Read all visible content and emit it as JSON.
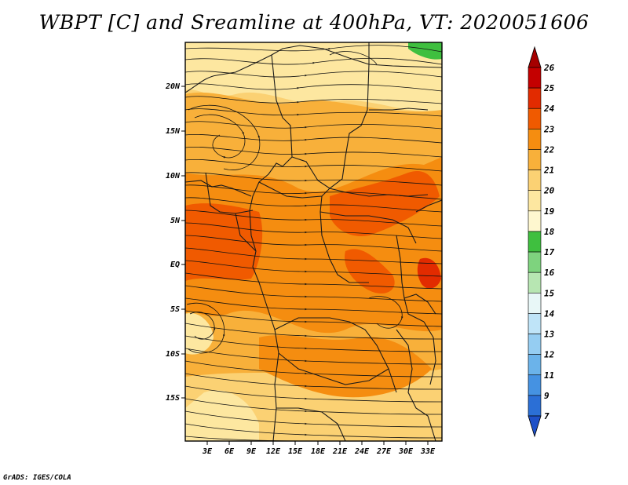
{
  "title": "WBPT [C] and Sreamline at 400hPa, VT: 2020051606",
  "credit": "GrADS: IGES/COLA",
  "map": {
    "lat_labels": [
      "20N",
      "15N",
      "10N",
      "5N",
      "EQ",
      "5S",
      "10S",
      "15S"
    ],
    "lon_labels": [
      "3E",
      "6E",
      "9E",
      "12E",
      "15E",
      "18E",
      "21E",
      "24E",
      "27E",
      "30E",
      "33E"
    ]
  },
  "colorbar": {
    "labels": [
      "26",
      "25",
      "24",
      "23",
      "22",
      "21",
      "20",
      "19",
      "18",
      "17",
      "16",
      "15",
      "14",
      "13",
      "12",
      "11",
      "9",
      "7"
    ],
    "colors": [
      "#a50000",
      "#c40000",
      "#e22b00",
      "#f05a00",
      "#f58d10",
      "#f8b03a",
      "#fbd173",
      "#fde7a0",
      "#fef7cf",
      "#3fbf3f",
      "#7ed37e",
      "#b7e6b2",
      "#e8f7f7",
      "#bfe4f8",
      "#95cdf2",
      "#6bb3ea",
      "#4592e2",
      "#2b6fd6",
      "#1e50c8"
    ]
  }
}
